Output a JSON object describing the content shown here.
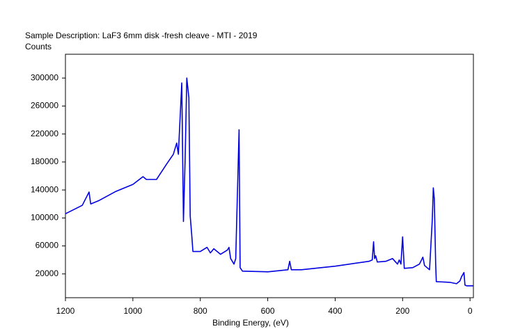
{
  "chart_data": {
    "type": "line",
    "title": "Sample Description:  LaF3 6mm disk -fresh cleave - MTI - 2019",
    "y_label": "Counts",
    "x_label": "Binding Energy, (eV)",
    "x": [
      1200,
      1150,
      1130,
      1125,
      1100,
      1050,
      1000,
      970,
      960,
      930,
      900,
      880,
      870,
      865,
      855,
      850,
      845,
      840,
      834,
      830,
      825,
      822,
      800,
      780,
      770,
      760,
      740,
      720,
      715,
      710,
      700,
      695,
      685,
      682,
      675,
      600,
      540,
      535,
      530,
      500,
      400,
      300,
      290,
      286,
      283,
      280,
      275,
      250,
      230,
      215,
      210,
      205,
      200,
      195,
      170,
      150,
      140,
      135,
      120,
      112,
      109,
      106,
      102,
      100,
      60,
      40,
      30,
      25,
      18,
      15,
      10,
      -10
    ],
    "series": [
      {
        "name": "Counts",
        "color": "#0000e0",
        "values": [
          106000,
          118000,
          137000,
          120000,
          125000,
          138000,
          148000,
          159000,
          155000,
          155000,
          177000,
          191000,
          207000,
          191000,
          293000,
          95000,
          183000,
          300000,
          272000,
          103000,
          73000,
          52000,
          52000,
          58000,
          50000,
          56000,
          48000,
          54000,
          58000,
          42000,
          34000,
          42000,
          226000,
          29000,
          24000,
          23000,
          26000,
          38000,
          26000,
          26000,
          31000,
          38000,
          40000,
          66000,
          42000,
          46000,
          37000,
          38000,
          42000,
          34000,
          40000,
          34000,
          73000,
          28000,
          29000,
          34000,
          44000,
          32000,
          26000,
          97000,
          143000,
          128000,
          34000,
          9000,
          8000,
          6000,
          10000,
          16000,
          22000,
          4000,
          3000,
          3000
        ]
      }
    ],
    "xlim": [
      1200,
      -10
    ],
    "xticks": [
      1200,
      1000,
      800,
      600,
      400,
      200,
      0
    ],
    "ylim": [
      -14000,
      334000
    ],
    "yticks": [
      20000,
      60000,
      100000,
      140000,
      180000,
      220000,
      260000,
      300000
    ]
  }
}
